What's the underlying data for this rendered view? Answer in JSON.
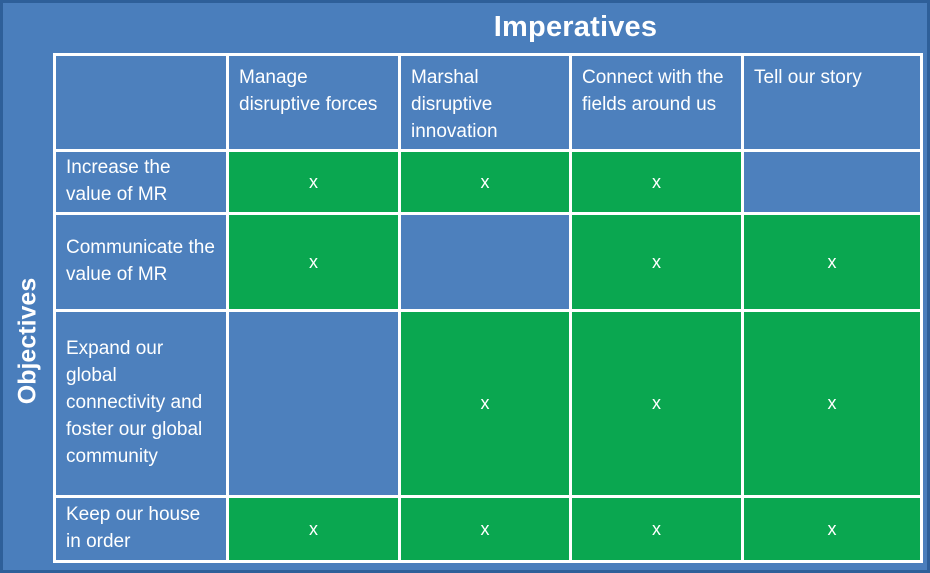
{
  "title": "Imperatives",
  "side_label": "Objectives",
  "colors": {
    "background_blue": "#4a7ebc",
    "cell_blue": "#4d80bd",
    "mark_green": "#0aa750",
    "grid_border": "#ffffff",
    "outer_frame": "#2e5f99",
    "text": "#ffffff"
  },
  "matrix": {
    "columns": [
      "Manage disruptive forces",
      "Marshal disruptive innovation",
      "Connect with the fields around us",
      "Tell our story"
    ],
    "rows": [
      "Increase the value of MR",
      "Communicate the value of MR",
      "Expand our global connectivity and foster our global community",
      "Keep our house in order"
    ],
    "mark_symbol": "x",
    "marks": [
      [
        "x",
        "x",
        "x",
        ""
      ],
      [
        "x",
        "",
        "x",
        "x"
      ],
      [
        "",
        "x",
        "x",
        "x"
      ],
      [
        "x",
        "x",
        "x",
        "x"
      ]
    ]
  }
}
